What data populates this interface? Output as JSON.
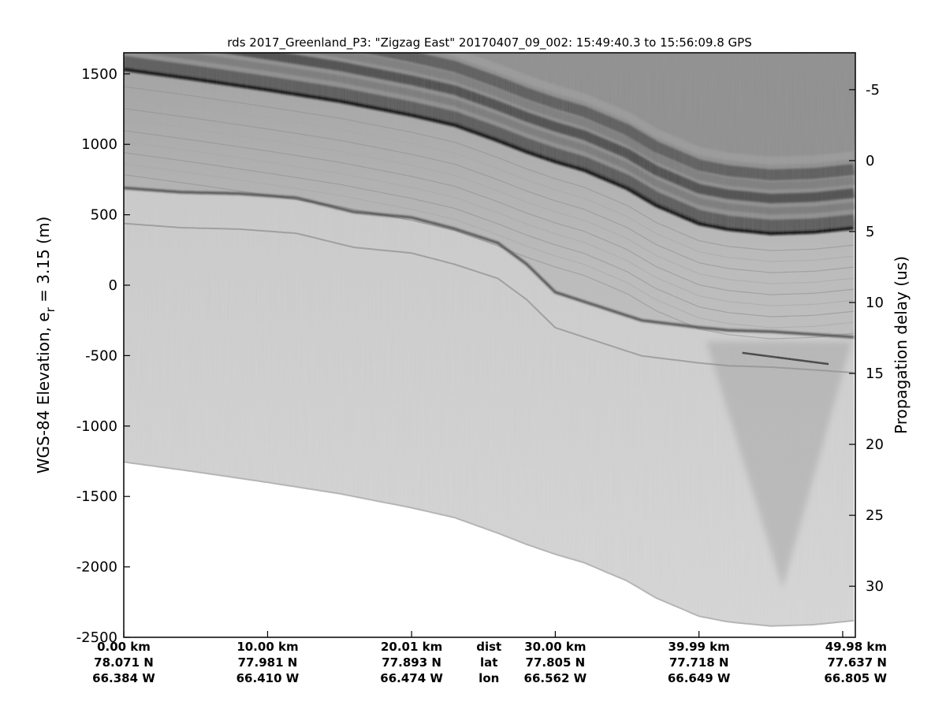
{
  "chart_data": {
    "type": "heatmap",
    "title": "rds 2017_Greenland_P3: \"Zigzag East\"  20170407_09_002: 15:49:40.3 to 15:56:09.8 GPS",
    "ylabel_left": {
      "text": "WGS-84 Elevation, e",
      "sub": "r",
      "suffix": " = 3.15 (m)"
    },
    "ylabel_right": "Propagation delay (us)",
    "colormap": "gray (reversed)",
    "ylim_left": [
      -2500,
      1650
    ],
    "yticks_left": [
      1500,
      1000,
      500,
      0,
      -500,
      -1000,
      -1500,
      -2000,
      -2500
    ],
    "ytick_labels_left": [
      "1500",
      "1000",
      "500",
      "0",
      "-500",
      "-1000",
      "-1500",
      "-2000",
      "-2500"
    ],
    "yticks_right": [
      -5,
      0,
      5,
      10,
      15,
      20,
      25,
      30
    ],
    "ytick_labels_right": [
      "-5",
      "0",
      "5",
      "10",
      "15",
      "20",
      "25",
      "30"
    ],
    "right_axis_range": [
      -7.6,
      33.6
    ],
    "x_range_km": [
      0,
      50.86
    ],
    "x_rows": {
      "dist": {
        "row_label": "dist",
        "values": [
          "0.00 km",
          "10.00 km",
          "20.01 km",
          "30.00 km",
          "39.99 km",
          "49.98 km"
        ]
      },
      "lat": {
        "row_label": "lat",
        "values": [
          "78.071 N",
          "77.981 N",
          "77.893 N",
          "77.805 N",
          "77.718 N",
          "77.637 N"
        ]
      },
      "lon": {
        "row_label": "lon",
        "values": [
          "66.384 W",
          "66.410 W",
          "66.474 W",
          "66.562 W",
          "66.649 W",
          "66.805 W"
        ]
      }
    },
    "x_tick_km": [
      0.0,
      10.0,
      20.01,
      30.0,
      39.99,
      49.98
    ],
    "ice_surface_elevation_m": {
      "x_km": [
        0,
        5,
        10,
        15,
        20,
        23,
        26,
        28,
        30,
        32,
        35,
        37,
        39.99,
        42,
        45,
        48,
        50.86
      ],
      "values": [
        1545,
        1475,
        1400,
        1320,
        1220,
        1150,
        1040,
        960,
        890,
        830,
        700,
        580,
        450,
        410,
        380,
        390,
        420
      ]
    },
    "bed_reflector_elevation_m": {
      "x_km": [
        0,
        4,
        8,
        12,
        16,
        20,
        23,
        26,
        28,
        30,
        33,
        36,
        39.99,
        42,
        45,
        48,
        50.86
      ],
      "values": [
        690,
        660,
        650,
        620,
        520,
        480,
        400,
        300,
        150,
        -50,
        -150,
        -250,
        -300,
        -320,
        -330,
        -350,
        -370
      ]
    },
    "data_end_elevation_m": {
      "x_km": [
        0,
        5,
        10,
        15,
        20,
        23,
        26,
        28,
        30,
        32,
        35,
        37,
        39.99,
        42,
        45,
        48,
        50.86
      ],
      "values": [
        -1255,
        -1325,
        -1400,
        -1480,
        -1580,
        -1650,
        -1760,
        -1840,
        -1910,
        -1970,
        -2100,
        -2220,
        -2350,
        -2390,
        -2420,
        -2410,
        -2380
      ]
    }
  }
}
